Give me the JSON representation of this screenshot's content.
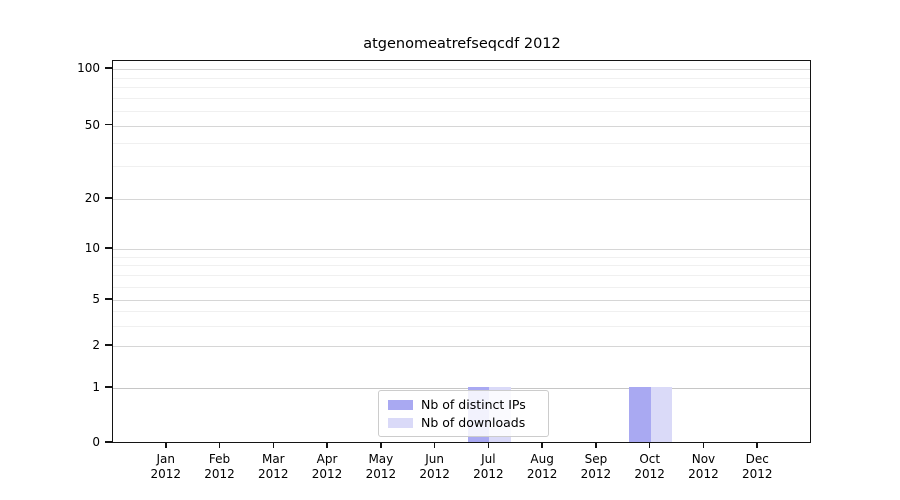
{
  "title": "atgenomeatrefseqcdf 2012",
  "chart_data": {
    "type": "bar",
    "title": "atgenomeatrefseqcdf 2012",
    "categories": [
      "Jan 2012",
      "Feb 2012",
      "Mar 2012",
      "Apr 2012",
      "May 2012",
      "Jun 2012",
      "Jul 2012",
      "Aug 2012",
      "Sep 2012",
      "Oct 2012",
      "Nov 2012",
      "Dec 2012"
    ],
    "month_labels": [
      "Jan",
      "Feb",
      "Mar",
      "Apr",
      "May",
      "Jun",
      "Jul",
      "Aug",
      "Sep",
      "Oct",
      "Nov",
      "Dec"
    ],
    "year_label": "2012",
    "series": [
      {
        "name": "Nb of distinct IPs",
        "color": "#a9a9f2",
        "values": [
          0,
          0,
          0,
          0,
          0,
          0,
          1,
          0,
          0,
          1,
          0,
          0
        ]
      },
      {
        "name": "Nb of downloads",
        "color": "#dadaf8",
        "values": [
          0,
          0,
          0,
          0,
          0,
          0,
          1,
          0,
          0,
          1,
          0,
          0
        ]
      }
    ],
    "xlabel": "",
    "ylabel": "",
    "yscale": "log-like",
    "yticks": [
      0,
      1,
      2,
      5,
      10,
      20,
      50,
      100
    ],
    "yminorticks": [
      3,
      4,
      6,
      7,
      8,
      9,
      30,
      40,
      60,
      70,
      80,
      90
    ],
    "ylim": [
      0,
      110
    ],
    "grid": "horizontal",
    "legend_position": "inside-bottom-center"
  }
}
